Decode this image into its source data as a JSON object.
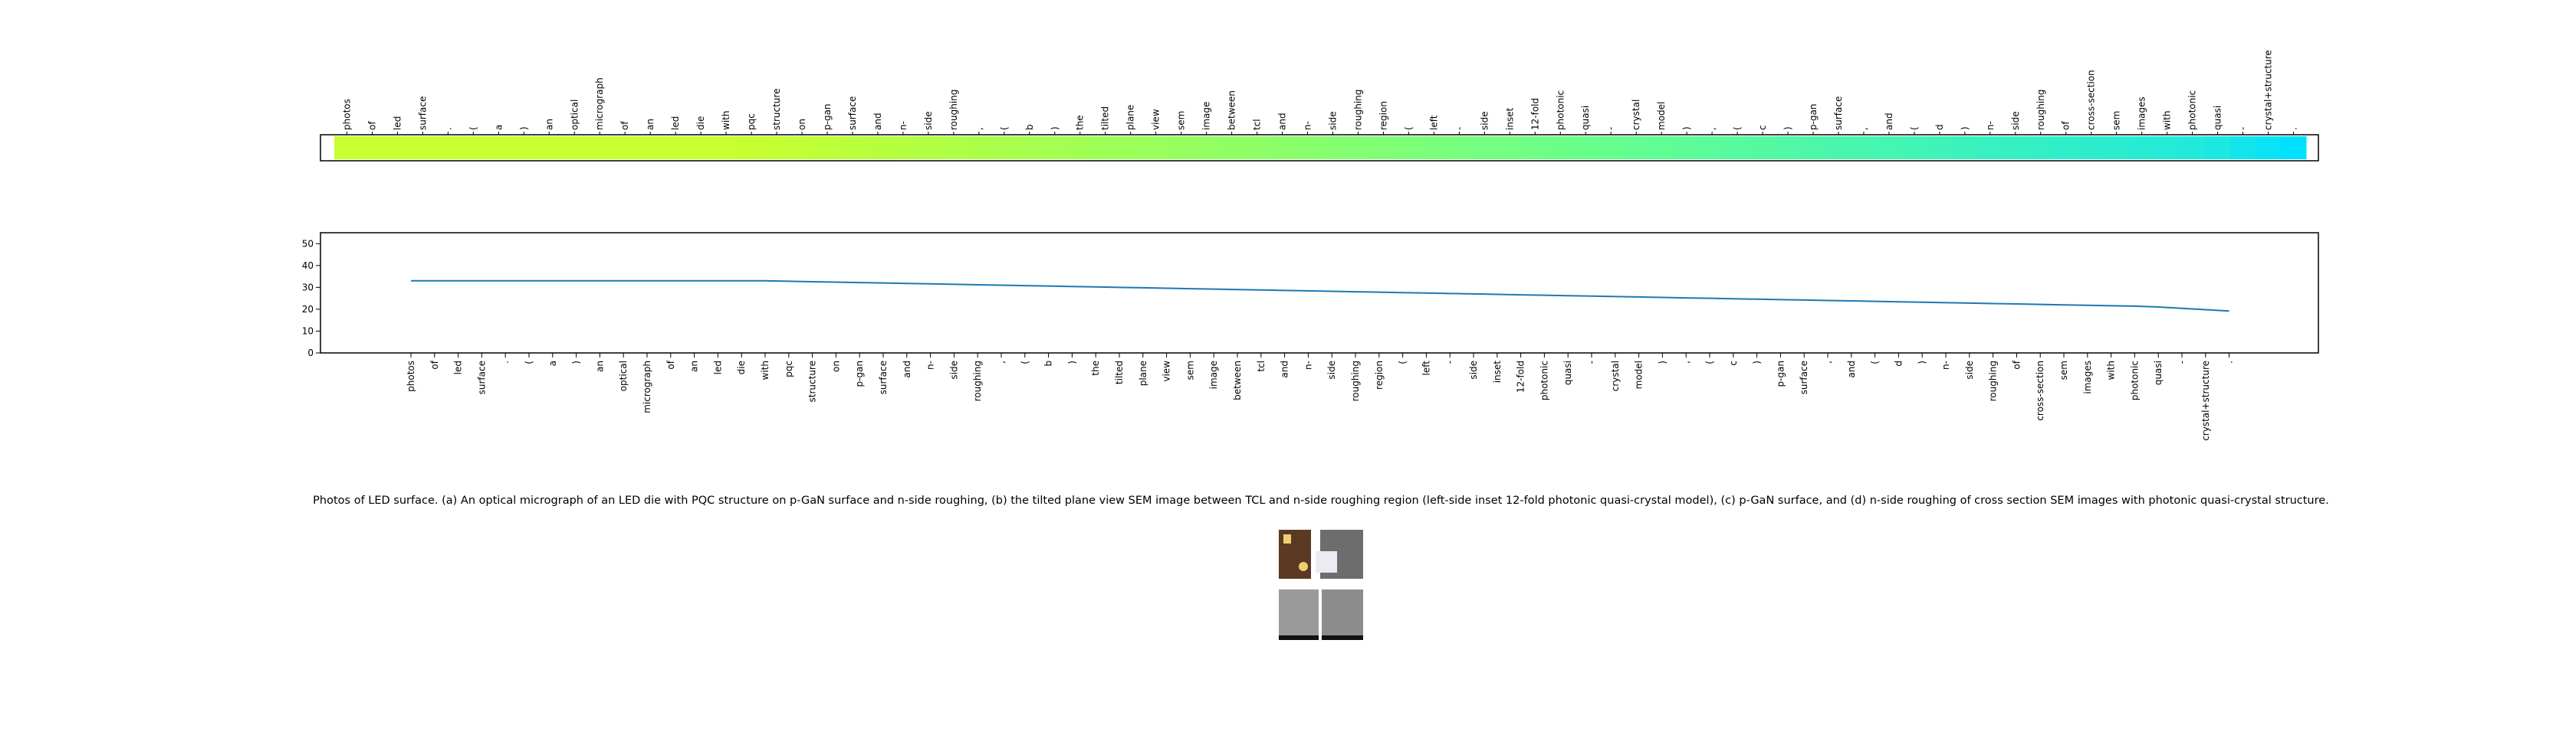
{
  "chart_data": [
    {
      "type": "heatmap",
      "categories": [
        "photos",
        "of",
        "led",
        "surface",
        ".",
        "(",
        "a",
        ")",
        "an",
        "optical",
        "micrograph",
        "of",
        "an",
        "led",
        "die",
        "with",
        "pqc",
        "structure",
        "on",
        "p-gan",
        "surface",
        "and",
        "n-",
        "side",
        "roughing",
        ",",
        "(",
        "b",
        ")",
        "the",
        "tilted",
        "plane",
        "view",
        "sem",
        "image",
        "between",
        "tcl",
        "and",
        "n-",
        "side",
        "roughing",
        "region",
        "(",
        "left",
        "-",
        "side",
        "inset",
        "12-fold",
        "photonic",
        "quasi",
        "-",
        "crystal",
        "model",
        ")",
        ",",
        "(",
        "c",
        ")",
        "p-gan",
        "surface",
        ",",
        "and",
        "(",
        "d",
        ")",
        "n-",
        "side",
        "roughing",
        "of",
        "cross-section",
        "sem",
        "images",
        "with",
        "photonic",
        "quasi",
        "-",
        "crystal+structure",
        "."
      ],
      "values": [
        33,
        33,
        33,
        33,
        33,
        33,
        33,
        33,
        33,
        33,
        33,
        33,
        33,
        33,
        33,
        33,
        32.8,
        32.6,
        32.4,
        32.2,
        32.0,
        31.8,
        31.6,
        31.4,
        31.2,
        31.0,
        30.8,
        30.6,
        30.4,
        30.2,
        30.0,
        29.8,
        29.6,
        29.4,
        29.2,
        29.0,
        28.8,
        28.6,
        28.4,
        28.2,
        28.0,
        27.8,
        27.6,
        27.4,
        27.2,
        27.0,
        26.8,
        26.6,
        26.4,
        26.2,
        26.0,
        25.8,
        25.6,
        25.4,
        25.2,
        25.0,
        24.8,
        24.6,
        24.4,
        24.2,
        24.0,
        23.8,
        23.6,
        23.4,
        23.2,
        23.0,
        22.8,
        22.6,
        22.4,
        22.2,
        22.0,
        21.8,
        21.6,
        21.4,
        21.0,
        20.4,
        19.8,
        19.2
      ],
      "color_stops": [
        "#00e0ff",
        "#68ff8c",
        "#c8ff2e"
      ]
    },
    {
      "type": "line",
      "categories": [
        "photos",
        "of",
        "led",
        "surface",
        ".",
        "(",
        "a",
        ")",
        "an",
        "optical",
        "micrograph",
        "of",
        "an",
        "led",
        "die",
        "with",
        "pqc",
        "structure",
        "on",
        "p-gan",
        "surface",
        "and",
        "n-",
        "side",
        "roughing",
        ",",
        "(",
        "b",
        ")",
        "the",
        "tilted",
        "plane",
        "view",
        "sem",
        "image",
        "between",
        "tcl",
        "and",
        "n-",
        "side",
        "roughing",
        "region",
        "(",
        "left",
        "-",
        "side",
        "inset",
        "12-fold",
        "photonic",
        "quasi",
        "-",
        "crystal",
        "model",
        ")",
        ",",
        "(",
        "c",
        ")",
        "p-gan",
        "surface",
        ",",
        "and",
        "(",
        "d",
        ")",
        "n-",
        "side",
        "roughing",
        "of",
        "cross-section",
        "sem",
        "images",
        "with",
        "photonic",
        "quasi",
        "-",
        "crystal+structure",
        "."
      ],
      "values": [
        33,
        33,
        33,
        33,
        33,
        33,
        33,
        33,
        33,
        33,
        33,
        33,
        33,
        33,
        33,
        33,
        32.8,
        32.6,
        32.4,
        32.2,
        32.0,
        31.8,
        31.6,
        31.4,
        31.2,
        31.0,
        30.8,
        30.6,
        30.4,
        30.2,
        30.0,
        29.8,
        29.6,
        29.4,
        29.2,
        29.0,
        28.8,
        28.6,
        28.4,
        28.2,
        28.0,
        27.8,
        27.6,
        27.4,
        27.2,
        27.0,
        26.8,
        26.6,
        26.4,
        26.2,
        26.0,
        25.8,
        25.6,
        25.4,
        25.2,
        25.0,
        24.8,
        24.6,
        24.4,
        24.2,
        24.0,
        23.8,
        23.6,
        23.4,
        23.2,
        23.0,
        22.8,
        22.6,
        22.4,
        22.2,
        22.0,
        21.8,
        21.6,
        21.4,
        21.0,
        20.4,
        19.8,
        19.2
      ],
      "color": "#1f77b4",
      "ylim": [
        0,
        55
      ],
      "yticks": [
        0,
        10,
        20,
        30,
        40,
        50
      ]
    }
  ],
  "caption": "Photos of LED surface. (a) An optical micrograph of an LED die with PQC structure on p-GaN surface and n-side roughing, (b) the tilted plane view SEM image between TCL and n-side roughing region (left-side inset 12-fold photonic quasi-crystal model), (c) p-GaN surface, and (d) n-side roughing of cross section SEM images with photonic quasi-crystal structure."
}
